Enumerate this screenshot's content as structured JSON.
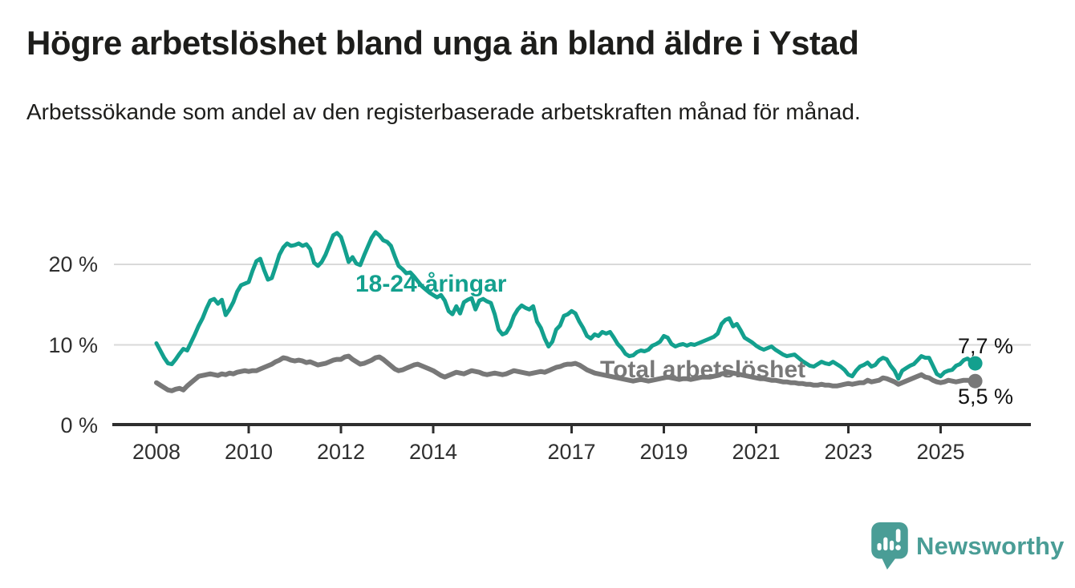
{
  "chart_data": {
    "type": "line",
    "title": "Högre arbetslöshet bland unga än bland äldre i Ystad",
    "subtitle": "Arbetssökande som andel av den registerbaserade arbetskraften månad för månad.",
    "x_unit": "month",
    "x_range": [
      "2008-01",
      "2025-10"
    ],
    "x_tick_labels": [
      "2008",
      "2010",
      "2012",
      "2014",
      "2017",
      "2019",
      "2021",
      "2023",
      "2025"
    ],
    "y_tick_labels": [
      "0 %",
      "10 %",
      "20 %"
    ],
    "ylim": [
      0,
      26
    ],
    "grid": "horizontal",
    "legend_position": "inline-labels",
    "series": [
      {
        "name": "18-24-åringar",
        "color": "#13a08e",
        "end_label": "7,7 %",
        "latest_value": 7.7,
        "values": [
          10.2,
          9.3,
          8.4,
          7.7,
          7.6,
          8.2,
          8.9,
          9.5,
          9.3,
          10.3,
          11.3,
          12.4,
          13.3,
          14.5,
          15.5,
          15.7,
          15.1,
          15.6,
          13.7,
          14.4,
          15.3,
          16.6,
          17.4,
          17.6,
          17.8,
          19.2,
          20.4,
          20.7,
          19.3,
          18.1,
          18.3,
          19.7,
          21.2,
          22.1,
          22.6,
          22.3,
          22.4,
          22.6,
          22.3,
          22.5,
          21.9,
          20.2,
          19.8,
          20.3,
          21.2,
          22.4,
          23.6,
          23.9,
          23.4,
          21.9,
          20.3,
          20.9,
          20.1,
          19.9,
          21.1,
          22.2,
          23.3,
          24.0,
          23.6,
          23.0,
          22.8,
          22.3,
          21.0,
          19.8,
          19.4,
          18.9,
          19.0,
          18.5,
          17.9,
          17.3,
          16.9,
          16.5,
          16.2,
          15.9,
          16.2,
          15.5,
          14.2,
          13.8,
          14.8,
          13.9,
          15.3,
          15.6,
          15.8,
          14.4,
          15.5,
          15.7,
          15.4,
          15.2,
          13.8,
          11.9,
          11.3,
          11.5,
          12.3,
          13.6,
          14.4,
          14.9,
          14.6,
          14.4,
          14.8,
          12.9,
          12.1,
          10.8,
          9.8,
          10.4,
          11.9,
          12.4,
          13.6,
          13.8,
          14.2,
          13.9,
          12.9,
          12.1,
          11.1,
          10.8,
          11.3,
          11.1,
          11.6,
          11.4,
          11.6,
          10.9,
          10.1,
          9.6,
          8.9,
          8.6,
          8.7,
          9.1,
          9.3,
          9.2,
          9.4,
          9.9,
          10.1,
          10.4,
          11.1,
          10.9,
          10.1,
          9.8,
          10.0,
          10.1,
          9.9,
          10.1,
          10.0,
          10.2,
          10.4,
          10.6,
          10.8,
          11.0,
          11.4,
          12.6,
          13.1,
          13.3,
          12.3,
          12.6,
          11.8,
          10.9,
          10.6,
          10.3,
          9.9,
          9.6,
          9.4,
          9.6,
          9.8,
          9.4,
          9.1,
          8.8,
          8.6,
          8.7,
          8.8,
          8.4,
          8.0,
          7.7,
          7.4,
          7.3,
          7.6,
          7.9,
          7.7,
          7.6,
          7.9,
          7.6,
          7.3,
          6.9,
          6.3,
          6.1,
          6.8,
          7.3,
          7.5,
          7.8,
          7.3,
          7.5,
          8.1,
          8.4,
          8.2,
          7.4,
          6.8,
          5.8,
          6.8,
          7.1,
          7.4,
          7.6,
          8.1,
          8.6,
          8.4,
          8.4,
          7.4,
          6.4,
          6.1,
          6.6,
          6.8,
          6.9,
          7.4,
          7.6,
          8.1,
          8.3,
          7.9,
          7.7
        ]
      },
      {
        "name": "Total arbetslöshet",
        "color": "#787878",
        "end_label": "5,5 %",
        "latest_value": 5.5,
        "values": [
          5.3,
          5.0,
          4.7,
          4.4,
          4.3,
          4.5,
          4.6,
          4.4,
          4.9,
          5.3,
          5.7,
          6.1,
          6.2,
          6.3,
          6.4,
          6.3,
          6.2,
          6.4,
          6.3,
          6.5,
          6.4,
          6.6,
          6.7,
          6.8,
          6.7,
          6.8,
          6.8,
          7.0,
          7.2,
          7.4,
          7.6,
          7.9,
          8.1,
          8.4,
          8.3,
          8.1,
          8.0,
          8.1,
          8.0,
          7.8,
          7.9,
          7.7,
          7.5,
          7.6,
          7.7,
          7.9,
          8.1,
          8.2,
          8.2,
          8.5,
          8.6,
          8.2,
          7.9,
          7.6,
          7.7,
          7.9,
          8.1,
          8.4,
          8.5,
          8.2,
          7.8,
          7.4,
          7.0,
          6.8,
          6.9,
          7.1,
          7.3,
          7.5,
          7.6,
          7.4,
          7.2,
          7.0,
          6.8,
          6.5,
          6.2,
          6.0,
          6.2,
          6.4,
          6.6,
          6.5,
          6.4,
          6.6,
          6.8,
          6.7,
          6.6,
          6.4,
          6.3,
          6.4,
          6.5,
          6.4,
          6.3,
          6.4,
          6.6,
          6.8,
          6.7,
          6.6,
          6.5,
          6.4,
          6.5,
          6.6,
          6.7,
          6.6,
          6.8,
          7.0,
          7.2,
          7.3,
          7.5,
          7.6,
          7.6,
          7.7,
          7.5,
          7.2,
          6.9,
          6.7,
          6.5,
          6.4,
          6.3,
          6.2,
          6.1,
          6.0,
          5.9,
          5.8,
          5.7,
          5.6,
          5.5,
          5.6,
          5.7,
          5.6,
          5.5,
          5.6,
          5.7,
          5.8,
          5.9,
          6.0,
          5.9,
          5.8,
          5.7,
          5.8,
          5.8,
          5.7,
          5.8,
          5.9,
          6.0,
          6.0,
          6.0,
          6.1,
          6.2,
          6.4,
          6.5,
          6.6,
          6.5,
          6.4,
          6.3,
          6.2,
          6.1,
          6.0,
          5.9,
          5.8,
          5.8,
          5.7,
          5.6,
          5.6,
          5.5,
          5.4,
          5.4,
          5.3,
          5.3,
          5.2,
          5.2,
          5.1,
          5.1,
          5.0,
          5.0,
          5.1,
          5.0,
          5.0,
          4.9,
          4.9,
          5.0,
          5.1,
          5.2,
          5.1,
          5.2,
          5.3,
          5.3,
          5.6,
          5.4,
          5.5,
          5.6,
          5.9,
          5.8,
          5.6,
          5.4,
          5.1,
          5.3,
          5.5,
          5.7,
          5.9,
          6.1,
          6.3,
          6.0,
          5.9,
          5.6,
          5.4,
          5.3,
          5.4,
          5.6,
          5.5,
          5.4,
          5.5,
          5.6,
          5.6,
          5.5,
          5.5
        ]
      }
    ]
  },
  "footer": {
    "brand": "Newsworthy",
    "logo_color": "#4a9d96",
    "logo_icon_name": "bar-chart-speech-bubble-icon"
  }
}
